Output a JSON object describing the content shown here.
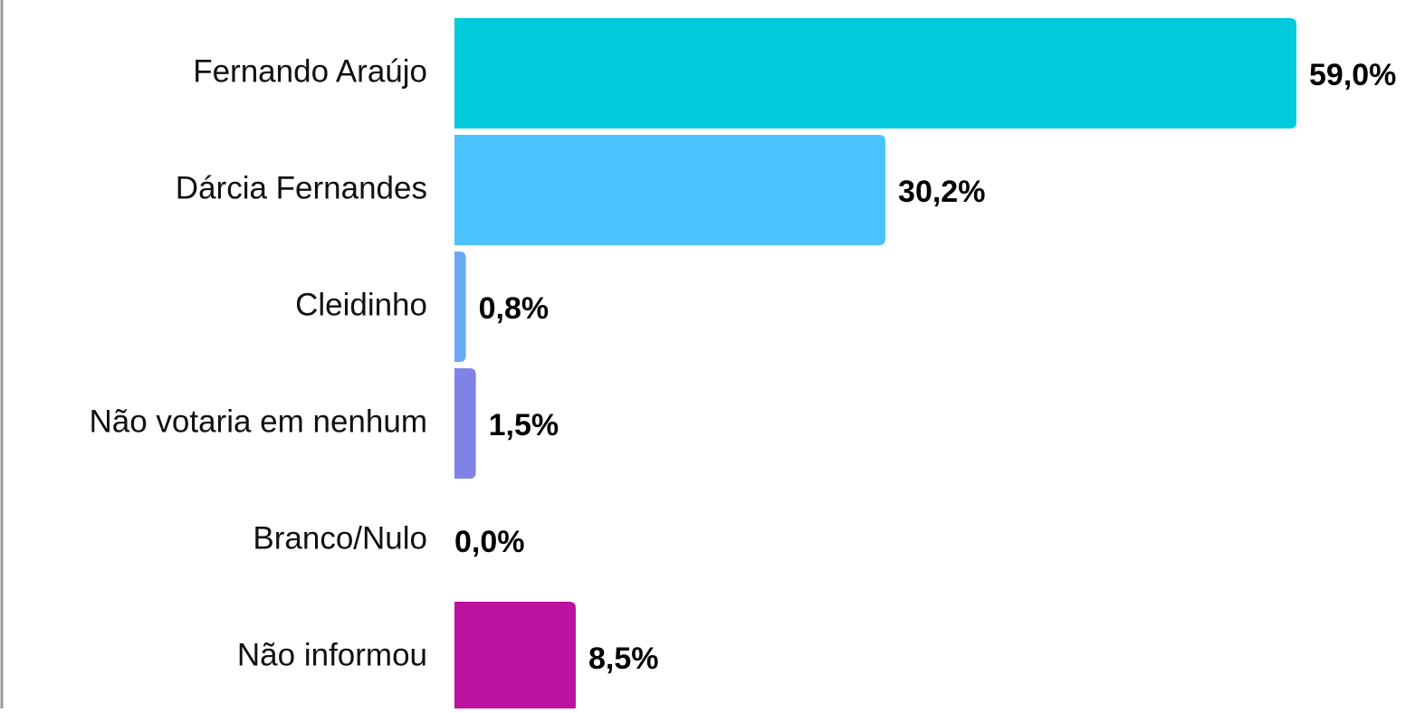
{
  "chart_data": {
    "type": "hbar",
    "categories": [
      "Fernando Araújo",
      "Dárcia Fernandes",
      "Cleidinho",
      "Não votaria em nenhum",
      "Branco/Nulo",
      "Não informou"
    ],
    "values": [
      59.0,
      30.2,
      0.8,
      1.5,
      0.0,
      8.5
    ],
    "value_labels": [
      "59,0%",
      "30,2%",
      "0,8%",
      "1,5%",
      "0,0%",
      "8,5%"
    ],
    "colors": [
      "#00cadc",
      "#4bc3fd",
      "#6aa8f8",
      "#8083e6",
      "#a8a8a8",
      "#bc12a0"
    ]
  }
}
